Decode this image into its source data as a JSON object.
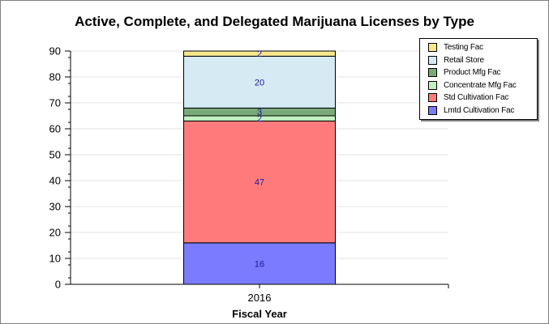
{
  "chart_data": {
    "type": "bar",
    "stacked": true,
    "title": "Active, Complete, and Delegated Marijuana Licenses by Type",
    "xlabel": "Fiscal Year",
    "ylabel": "",
    "categories": [
      "2016"
    ],
    "ylim": [
      0,
      90
    ],
    "yticks": [
      0,
      10,
      20,
      30,
      40,
      50,
      60,
      70,
      80,
      90
    ],
    "grid": true,
    "legend_position": "top-right",
    "series": [
      {
        "name": "Lmtd Cultivation Fac",
        "values": [
          16
        ],
        "color": "#7b7bff"
      },
      {
        "name": "Std Cultivation Fac",
        "values": [
          47
        ],
        "color": "#ff7b7b"
      },
      {
        "name": "Concentrate Mfg Fac",
        "values": [
          2
        ],
        "color": "#c2f2c2"
      },
      {
        "name": "Product Mfg Fac",
        "values": [
          3
        ],
        "color": "#7aaa7a"
      },
      {
        "name": "Retail Store",
        "values": [
          20
        ],
        "color": "#d6eaf4"
      },
      {
        "name": "Testing Fac",
        "values": [
          2
        ],
        "color": "#f7e890"
      }
    ],
    "legend_order": [
      "Testing Fac",
      "Retail Store",
      "Product Mfg Fac",
      "Concentrate Mfg Fac",
      "Std Cultivation Fac",
      "Lmtd Cultivation Fac"
    ],
    "label_color": "#1a1aa0"
  }
}
